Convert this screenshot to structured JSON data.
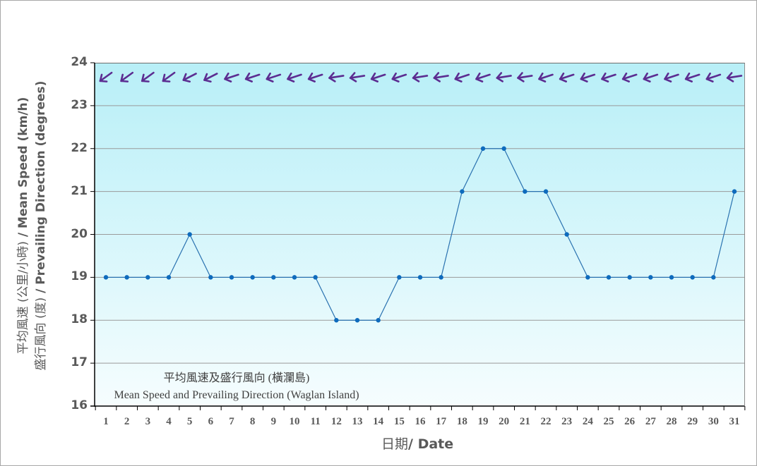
{
  "chart_data": {
    "type": "line",
    "title": "平均風速及盛行風向 (橫瀾島) / Mean Speed and Prevailing Direction (Waglan Island)",
    "title_zh": "平均風速及盛行風向 (橫瀾島)",
    "title_en": "Mean Speed and Prevailing Direction (Waglan Island)",
    "xlabel_zh": "日期",
    "xlabel_en": "/ Date",
    "ylabel_line1_zh": "平均風速 (公里/小時)",
    "ylabel_line1_en": " / Mean Speed (km/h)",
    "ylabel_line2_zh": "盛行風向 (度)",
    "ylabel_line2_en": " / Prevailing Direction (degrees)",
    "categories": [
      "1",
      "2",
      "3",
      "4",
      "5",
      "6",
      "7",
      "8",
      "9",
      "10",
      "11",
      "12",
      "13",
      "14",
      "15",
      "16",
      "17",
      "18",
      "19",
      "20",
      "21",
      "22",
      "23",
      "24",
      "25",
      "26",
      "27",
      "28",
      "29",
      "30",
      "31"
    ],
    "series": [
      {
        "name": "Mean Speed (km/h)",
        "values": [
          19,
          19,
          19,
          19,
          20,
          19,
          19,
          19,
          19,
          19,
          19,
          18,
          18,
          18,
          19,
          19,
          19,
          21,
          22,
          22,
          21,
          21,
          20,
          19,
          19,
          19,
          19,
          19,
          19,
          19,
          21
        ],
        "color": "#1f6fb3"
      },
      {
        "name": "Prevailing Direction (arrow glyphs, degrees)",
        "values": [
          50,
          50,
          50,
          50,
          60,
          60,
          70,
          70,
          70,
          70,
          70,
          80,
          80,
          70,
          70,
          80,
          80,
          70,
          70,
          80,
          80,
          70,
          70,
          70,
          70,
          70,
          70,
          70,
          70,
          70,
          80
        ],
        "color": "#5c2d91"
      }
    ],
    "yticks": [
      16,
      17,
      18,
      19,
      20,
      21,
      22,
      23,
      24
    ],
    "ylim": [
      16,
      24
    ],
    "grid": true,
    "legend": "none"
  },
  "colors": {
    "line": "#2a72b0",
    "marker": "#0e6bbd",
    "arrow": "#5c2d91",
    "grid": "#9a9a9a",
    "axis_text": "#595959"
  }
}
